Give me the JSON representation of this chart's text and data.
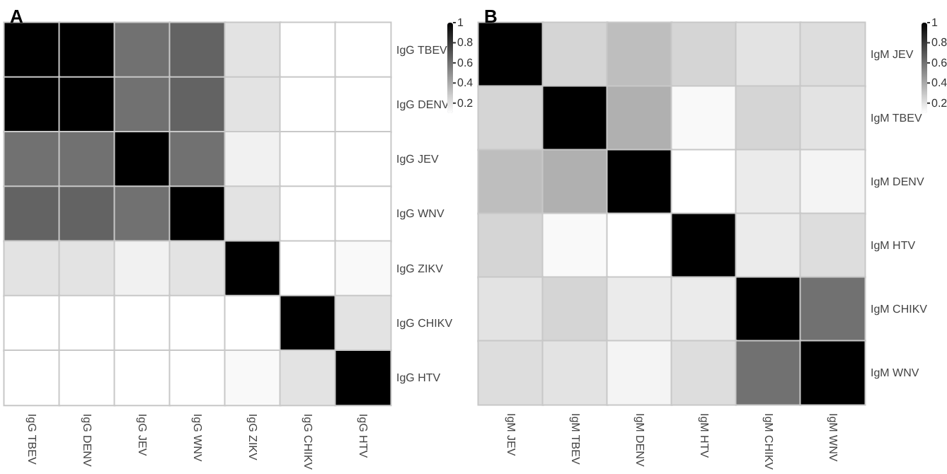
{
  "chart_data": [
    {
      "type": "heatmap",
      "title": "A",
      "categories": [
        "IgG TBEV",
        "IgG DENV",
        "IgG JEV",
        "IgG WNV",
        "IgG ZIKV",
        "IgG CHIKV",
        "IgG HTV"
      ],
      "y_categories": [
        "IgG TBEV",
        "IgG DENV",
        "IgG JEV",
        "IgG WNV",
        "IgG ZIKV",
        "IgG CHIKV",
        "IgG HTV"
      ],
      "cells": [
        [
          1,
          1,
          0.6,
          0.65,
          0.2,
          0.1,
          0.1
        ],
        [
          1,
          1,
          0.6,
          0.65,
          0.2,
          0.1,
          0.1
        ],
        [
          0.6,
          0.6,
          1,
          0.6,
          0.15,
          0.1,
          0.1
        ],
        [
          0.65,
          0.65,
          0.6,
          1,
          0.2,
          0.1,
          0.1
        ],
        [
          0.2,
          0.2,
          0.15,
          0.2,
          1,
          0.1,
          0.12
        ],
        [
          0.1,
          0.1,
          0.1,
          0.1,
          0.1,
          1,
          0.2
        ],
        [
          0.1,
          0.1,
          0.1,
          0.1,
          0.12,
          0.2,
          1
        ]
      ],
      "clim": [
        0.1,
        1
      ],
      "cticks": [
        0.2,
        0.4,
        0.6,
        0.8,
        1
      ]
    },
    {
      "type": "heatmap",
      "title": "B",
      "categories": [
        "IgM JEV",
        "IgM TBEV",
        "IgM DENV",
        "IgM HTV",
        "IgM CHIKV",
        "IgM WNV"
      ],
      "y_categories": [
        "IgM JEV",
        "IgM TBEV",
        "IgM DENV",
        "IgM HTV",
        "IgM CHIKV",
        "IgM WNV"
      ],
      "cells": [
        [
          1,
          0.25,
          0.33,
          0.25,
          0.2,
          0.22
        ],
        [
          0.25,
          1,
          0.38,
          0.12,
          0.25,
          0.2
        ],
        [
          0.33,
          0.38,
          1,
          0.1,
          0.17,
          0.14
        ],
        [
          0.25,
          0.12,
          0.1,
          1,
          0.17,
          0.22
        ],
        [
          0.2,
          0.25,
          0.17,
          0.17,
          1,
          0.6
        ],
        [
          0.22,
          0.2,
          0.14,
          0.22,
          0.6,
          1
        ]
      ],
      "clim": [
        0.1,
        1
      ],
      "cticks": [
        0.2,
        0.4,
        0.6,
        0.8,
        1
      ]
    }
  ]
}
